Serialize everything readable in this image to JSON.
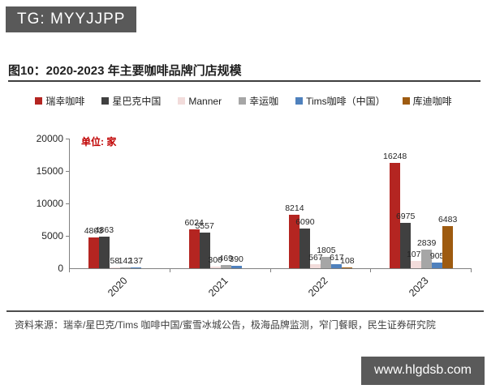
{
  "badge": {
    "text": "TG: MYYJJPP"
  },
  "figure": {
    "title": "图10：2020-2023 年主要咖啡品牌门店规模"
  },
  "source": {
    "text": "资料来源：瑞幸/星巴克/Tims 咖啡中国/蜜雪冰城公告，极海品牌监测，窄门餐眼，民生证券研究院"
  },
  "watermark": {
    "text": "www.hlgdsb.com"
  },
  "chart_data": {
    "type": "bar",
    "title": "2020-2023 年主要咖啡品牌门店规模",
    "unit_label": "单位: 家",
    "categories": [
      "2020",
      "2021",
      "2022",
      "2023"
    ],
    "series": [
      {
        "name": "瑞幸咖啡",
        "color": "#b42521",
        "values": [
          4803,
          6024,
          8214,
          16248
        ]
      },
      {
        "name": "星巴克中国",
        "color": "#404040",
        "values": [
          4863,
          5557,
          6090,
          6975
        ]
      },
      {
        "name": "Manner",
        "color": "#f2dcdb",
        "values": [
          58,
          300,
          567,
          1075
        ]
      },
      {
        "name": "幸运咖",
        "color": "#a6a6a6",
        "values": [
          142,
          469,
          1805,
          2839
        ]
      },
      {
        "name": "Tims咖啡（中国）",
        "color": "#4f81bd",
        "values": [
          137,
          390,
          617,
          905
        ]
      },
      {
        "name": "库迪咖啡",
        "color": "#9e5b10",
        "values": [
          null,
          null,
          108,
          6483
        ]
      }
    ],
    "ylim": [
      0,
      20000
    ],
    "yticks": [
      0,
      5000,
      10000,
      15000,
      20000
    ],
    "legend_position": "top",
    "grid": false
  }
}
